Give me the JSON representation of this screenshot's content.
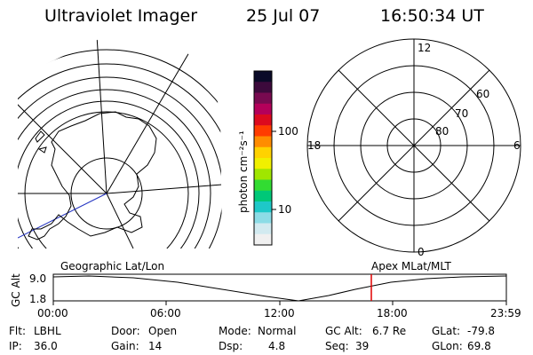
{
  "header": {
    "instrument": "Ultraviolet Imager",
    "date": "25 Jul 07",
    "time": "16:50:34 UT"
  },
  "colorbar": {
    "unit_label": "photon cm⁻²s⁻¹",
    "tick_labels": [
      "100",
      "10"
    ],
    "colors": [
      "#0a0a28",
      "#3c0a3c",
      "#780a50",
      "#b4005a",
      "#dc0a1e",
      "#ff3c00",
      "#ff8c00",
      "#ffd200",
      "#f0f000",
      "#a0e600",
      "#32dc32",
      "#00c878",
      "#1ec8c8",
      "#8cdce6",
      "#d2eaf0",
      "#f0f0f0"
    ]
  },
  "left_map": {
    "label": "Geographic Lat/Lon"
  },
  "right_map": {
    "label": "Apex MLat/MLT",
    "mlt_labels": {
      "top": "12",
      "left": "18",
      "right": "6",
      "bottom": "0"
    },
    "lat_labels": [
      "60",
      "70",
      "80"
    ]
  },
  "timeline": {
    "ylabel": "GC Alt",
    "y_ticks": [
      "9.0",
      "1.8"
    ],
    "x_ticks": [
      "00:00",
      "06:00",
      "12:00",
      "18:00",
      "23:59"
    ],
    "marker_time": "16:50",
    "marker_color": "#e00000"
  },
  "info": {
    "rows": [
      [
        {
          "key": "Flt:",
          "value": "LBHL"
        },
        {
          "key": "Door:",
          "value": "Open"
        },
        {
          "key": "Mode:",
          "value": "Normal"
        },
        {
          "key": "GC Alt:",
          "value": "6.7 Re"
        },
        {
          "key": "GLat:",
          "value": "-79.8"
        }
      ],
      [
        {
          "key": "IP:",
          "value": "36.0"
        },
        {
          "key": "Gain:",
          "value": "14"
        },
        {
          "key": "Dsp:",
          "value": "4.8"
        },
        {
          "key": "Seq:",
          "value": "39"
        },
        {
          "key": "GLon:",
          "value": "69.8"
        }
      ]
    ]
  }
}
